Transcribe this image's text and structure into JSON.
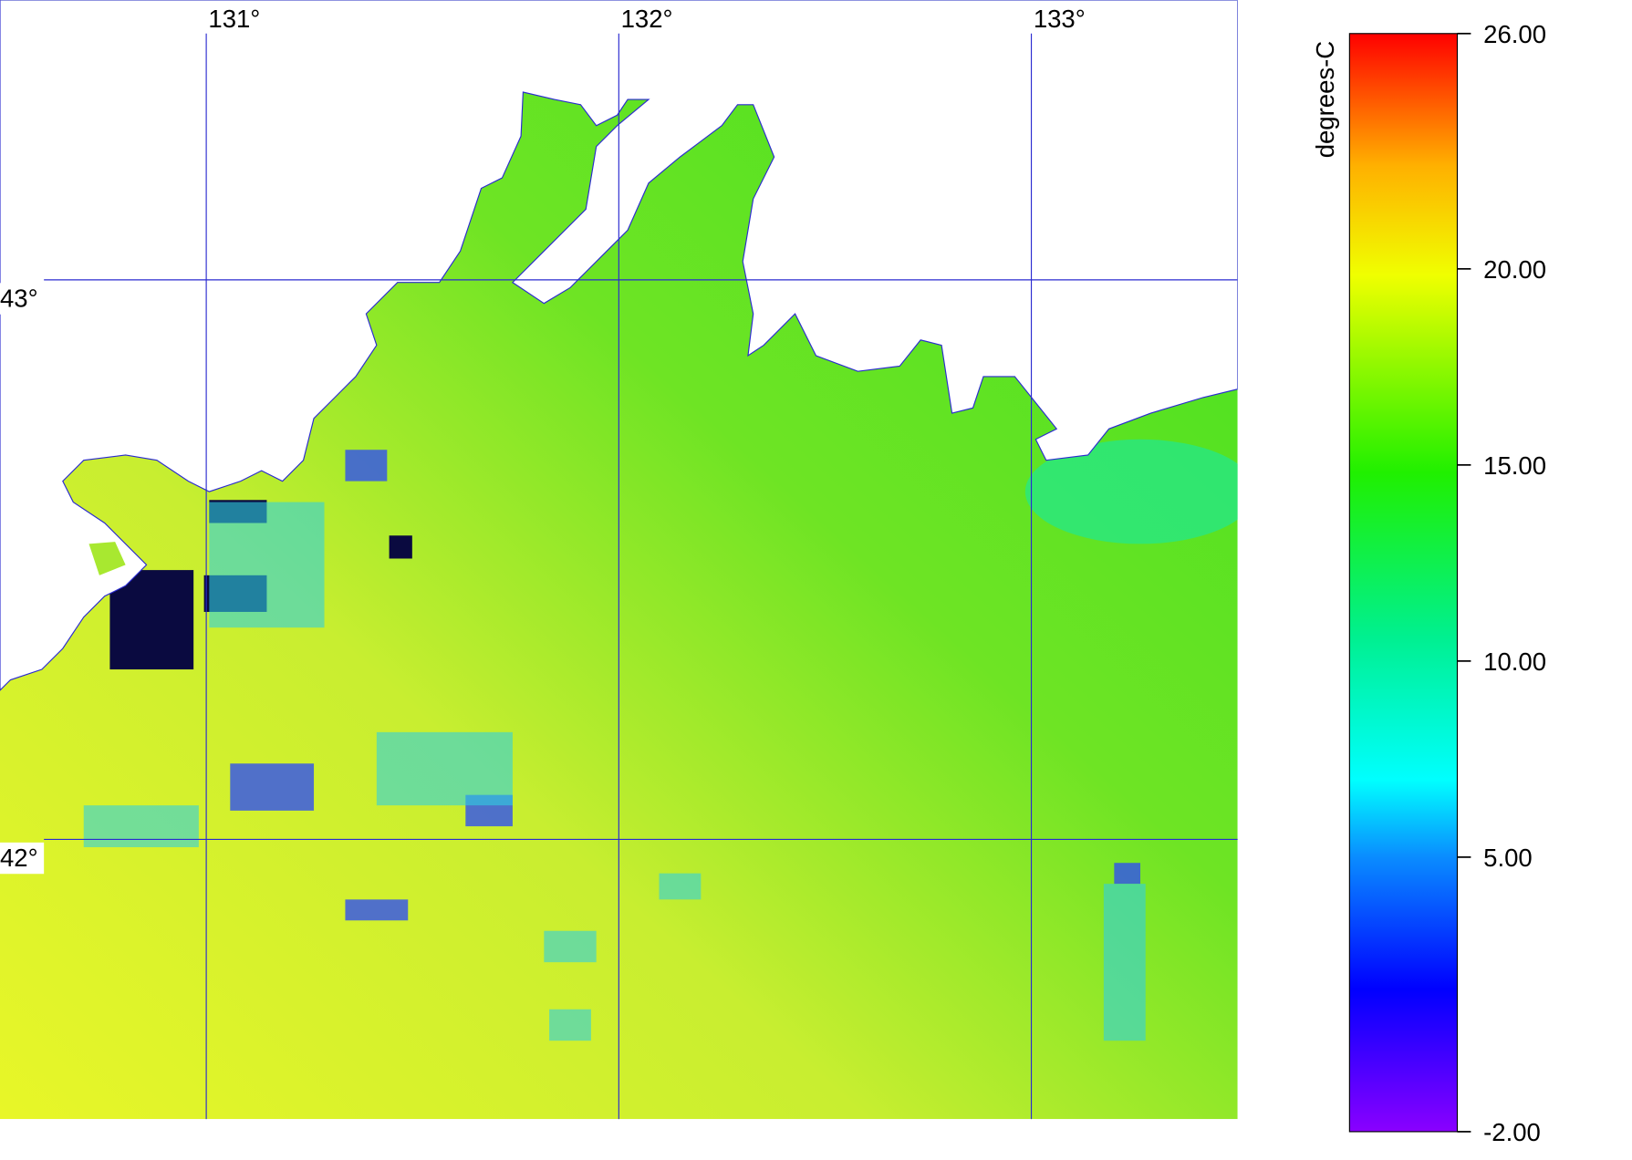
{
  "map": {
    "xlim": [
      130.5,
      133.5
    ],
    "ylim": [
      41.5,
      43.5
    ],
    "lon_ticks": [
      {
        "value": 131,
        "label": "131°"
      },
      {
        "value": 132,
        "label": "132°"
      },
      {
        "value": 133,
        "label": "133°"
      }
    ],
    "lat_ticks": [
      {
        "value": 43,
        "label": "43°"
      },
      {
        "value": 42,
        "label": "42°"
      }
    ],
    "grid_color": "#2a2ad0"
  },
  "colorbar": {
    "label": "degrees-C",
    "lim": [
      -2,
      26
    ],
    "ticks": [
      {
        "value": 26,
        "label": "26.00"
      },
      {
        "value": 20,
        "label": "20.00"
      },
      {
        "value": 15,
        "label": "15.00"
      },
      {
        "value": 10,
        "label": "10.00"
      },
      {
        "value": 5,
        "label": "5.00"
      },
      {
        "value": -2,
        "label": "-2.00"
      }
    ]
  }
}
